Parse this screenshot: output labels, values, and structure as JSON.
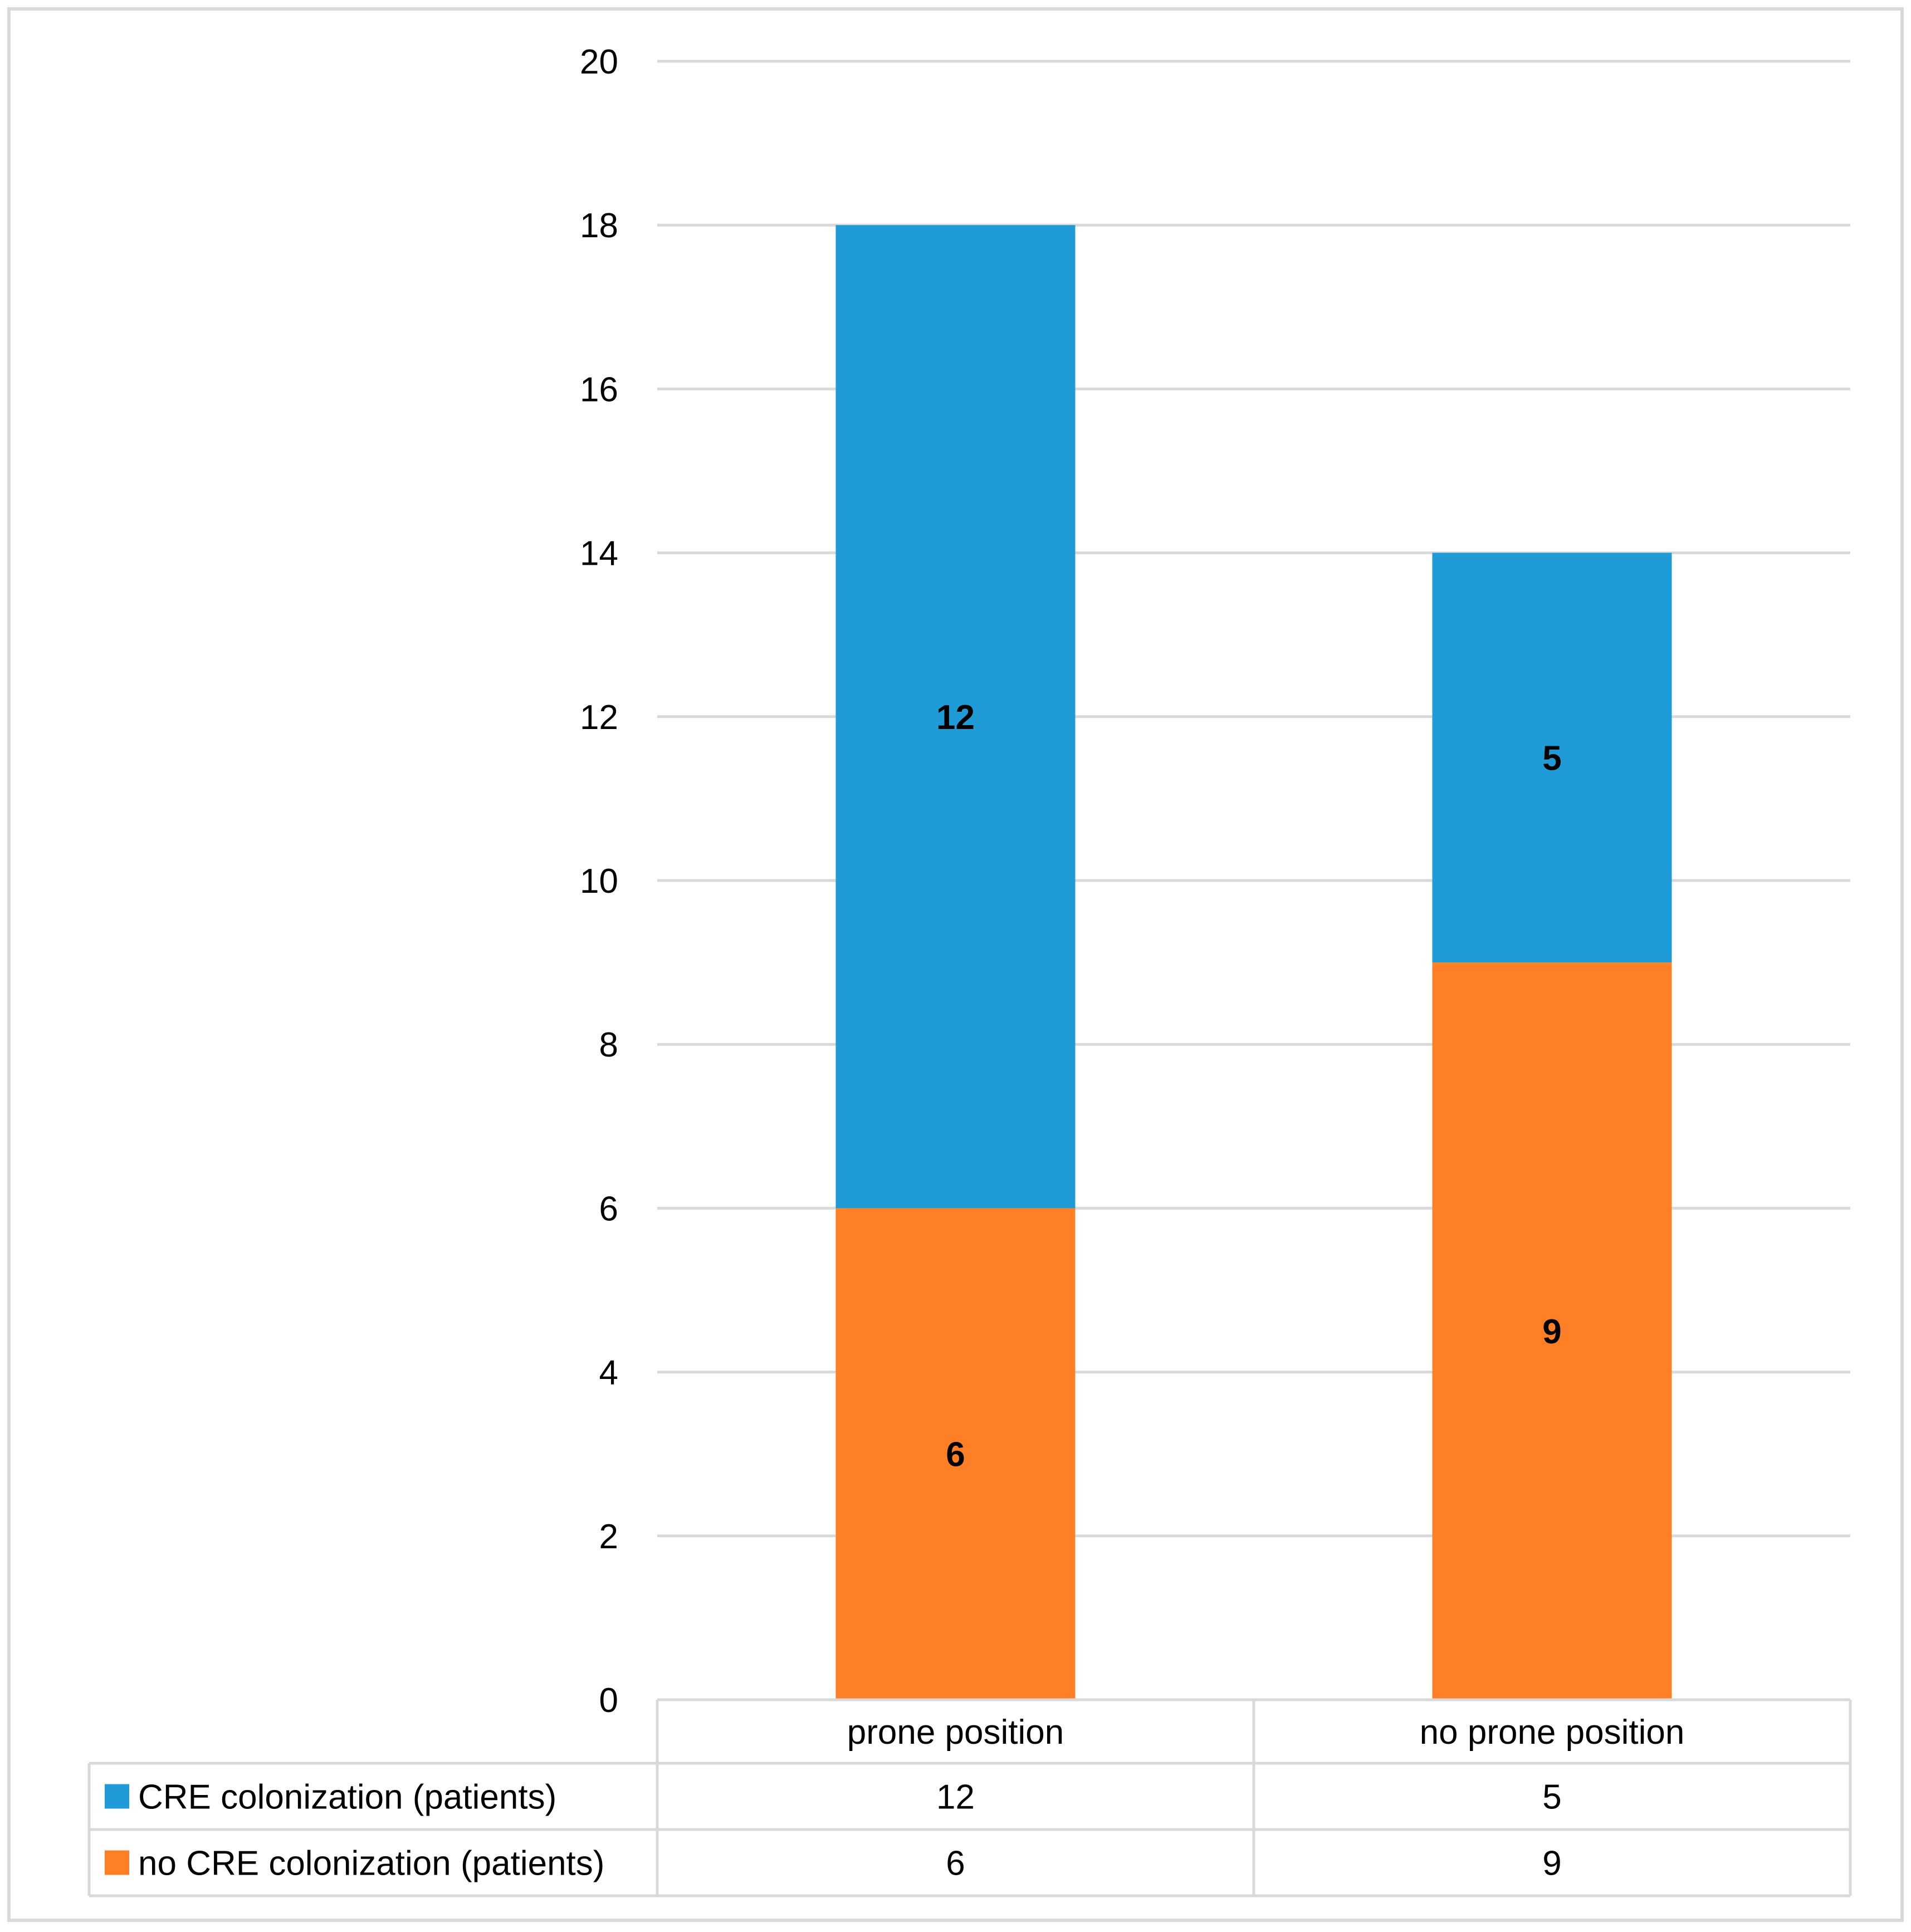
{
  "chart_data": {
    "type": "bar",
    "stacked": true,
    "categories": [
      "prone position",
      "no prone position"
    ],
    "series": [
      {
        "name": "no CRE colonization (patients)",
        "color": "#FF7F27",
        "values": [
          6,
          9
        ]
      },
      {
        "name": "CRE colonization (patients)",
        "color": "#1F9CD8",
        "values": [
          12,
          5
        ]
      }
    ],
    "table_rows": [
      {
        "label": "CRE colonization (patients)",
        "color": "#1F9CD8",
        "values": [
          "12",
          "5"
        ]
      },
      {
        "label": "no CRE colonization (patients)",
        "color": "#FF7F27",
        "values": [
          "6",
          "9"
        ]
      }
    ],
    "ylim": [
      0,
      20
    ],
    "yticks": [
      "0",
      "2",
      "4",
      "6",
      "8",
      "10",
      "12",
      "14",
      "16",
      "18",
      "20"
    ],
    "grid": true,
    "legend": "data-table",
    "title": "",
    "xlabel": "",
    "ylabel": ""
  }
}
